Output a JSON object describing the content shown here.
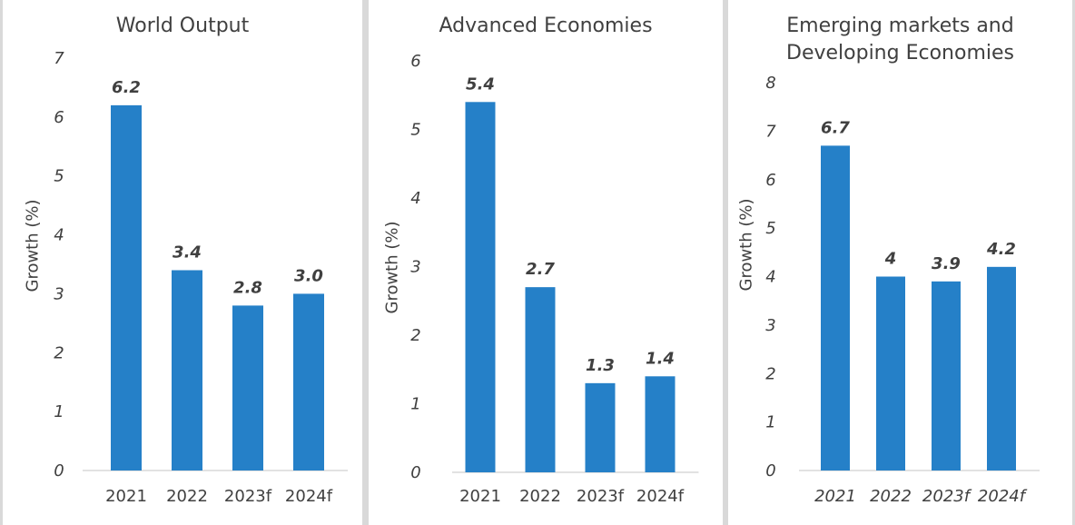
{
  "chart_data": [
    {
      "type": "bar",
      "title": "World Output",
      "ylabel": "Growth (%)",
      "categories": [
        "2021",
        "2022",
        "2023f",
        "2024f"
      ],
      "values": [
        6.2,
        3.4,
        2.8,
        3.0
      ],
      "data_labels": [
        "6.2",
        "3.4",
        "2.8",
        "3.0"
      ],
      "ylim": [
        0,
        7
      ],
      "yticks": [
        "0",
        "1",
        "2",
        "3",
        "4",
        "5",
        "6",
        "7"
      ],
      "category_labels_italic": false,
      "grid": false,
      "bar_color": "#2580C8"
    },
    {
      "type": "bar",
      "title": "Advanced Economies",
      "ylabel": "Growth (%)",
      "categories": [
        "2021",
        "2022",
        "2023f",
        "2024f"
      ],
      "values": [
        5.4,
        2.7,
        1.3,
        1.4
      ],
      "data_labels": [
        "5.4",
        "2.7",
        "1.3",
        "1.4"
      ],
      "ylim": [
        0,
        6
      ],
      "yticks": [
        "0",
        "1",
        "2",
        "3",
        "4",
        "5",
        "6"
      ],
      "category_labels_italic": false,
      "grid": false,
      "bar_color": "#2580C8"
    },
    {
      "type": "bar",
      "title": "Emerging markets and\nDeveloping Economies",
      "ylabel": "Growth (%)",
      "categories": [
        "2021",
        "2022",
        "2023f",
        "2024f"
      ],
      "values": [
        6.7,
        4.0,
        3.9,
        4.2
      ],
      "data_labels": [
        "6.7",
        "4",
        "3.9",
        "4.2"
      ],
      "ylim": [
        0,
        8
      ],
      "yticks": [
        "0",
        "1",
        "2",
        "3",
        "4",
        "5",
        "6",
        "7",
        "8"
      ],
      "category_labels_italic": true,
      "grid": false,
      "bar_color": "#2580C8"
    }
  ],
  "colors": {
    "bar": "#2580C8",
    "text": "#404040",
    "axis": "#d9d9d9",
    "separator": "#d9d9d9"
  }
}
